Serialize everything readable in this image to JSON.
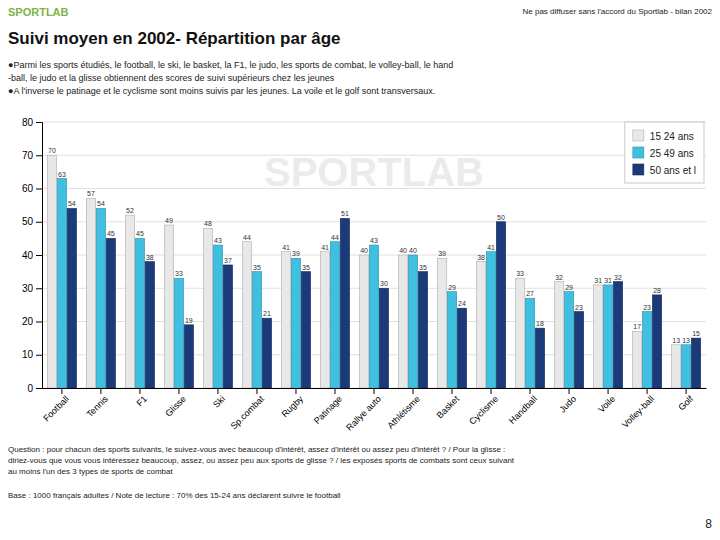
{
  "chart_data": {
    "type": "bar",
    "title": "Suivi moyen en 2002- Répartition par âge",
    "subtitle": "●Parmi les sports étudiés, le football, le ski, le basket, la F1, le judo, les sports de combat, le volley-ball, le hand\n-ball, le judo et la glisse obtiennent des scores de suivi supérieurs chez les jeunes\n●A l'inverse le patinage et le cyclisme sont moins suivis par les jeunes.  La voile et le golf sont transversaux.",
    "annotations": [
      "SPORTLAB",
      "Ne pas diffuser sans l'accord du Sportlab - bilan 2002",
      "SPORTLAB",
      "Question : pour chacun des sports suivants, le suivez-vous avec beaucoup d'intérêt, assez d'intérêt ou assez peu d'intérêt ? / Pour la glisse :\ndiriez-vous que vous vous intéressez beaucoup, assez, ou assez peu aux sports de glisse ? / les exposés sports de combats sont ceux suivant\nau moins l'un des 3 types de sports de combat",
      "Base : 1000 français adultes / Note de lecture : 70% des 15-24 ans déclarent suivre le football",
      "8"
    ],
    "categories": [
      "Football",
      "Tennis",
      "F1",
      "Glisse",
      "Ski",
      "Sp.combat",
      "Rugby",
      "Patinage",
      "Rallye auto",
      "Athlétisme",
      "Basket",
      "Cyclisme",
      "Handball",
      "Judo",
      "Voile",
      "Volley-ball",
      "Golf"
    ],
    "series": [
      {
        "name": "15 24 ans",
        "color": "#e8e8e8",
        "values": [
          70,
          57,
          52,
          49,
          48,
          44,
          41,
          41,
          40,
          40,
          39,
          38,
          33,
          32,
          31,
          17,
          13
        ]
      },
      {
        "name": "25 49 ans",
        "color": "#40c0e0",
        "values": [
          63,
          54,
          45,
          33,
          43,
          35,
          39,
          44,
          43,
          40,
          29,
          41,
          27,
          29,
          31,
          23,
          13
        ]
      },
      {
        "name": "50 ans et  l",
        "color": "#1a3a7a",
        "values": [
          54,
          45,
          38,
          19,
          37,
          21,
          35,
          51,
          30,
          35,
          24,
          50,
          18,
          23,
          32,
          28,
          15
        ]
      }
    ],
    "ylim": [
      0,
      80
    ],
    "yticks": [
      0,
      10,
      20,
      30,
      40,
      50,
      60,
      70,
      80
    ],
    "grid": true,
    "legend": "upper right",
    "data_labels": true
  }
}
